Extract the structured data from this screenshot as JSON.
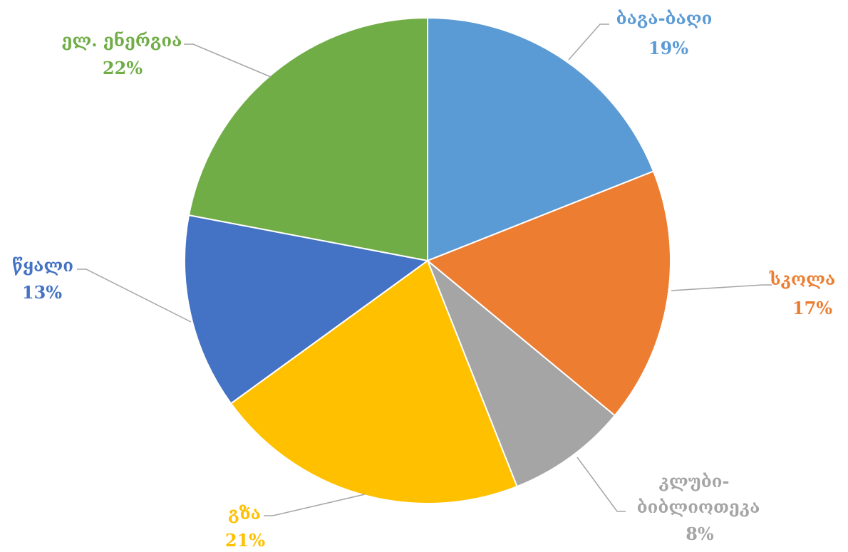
{
  "chart_data": {
    "type": "pie",
    "title": "",
    "slices": [
      {
        "label": "ბაგა-ბაღი",
        "value": 19,
        "pct_label": "19%",
        "color": "#5B9BD5"
      },
      {
        "label": "სკოლა",
        "value": 17,
        "pct_label": "17%",
        "color": "#ED7D31"
      },
      {
        "label": "კლუბი-ბიბლიოთეკა",
        "value": 8,
        "pct_label": "8%",
        "color": "#A5A5A5"
      },
      {
        "label": "გზა",
        "value": 21,
        "pct_label": "21%",
        "color": "#FFC000"
      },
      {
        "label": "წყალი",
        "value": 13,
        "pct_label": "13%",
        "color": "#4472C4"
      },
      {
        "label": "ელ. ენერგია",
        "value": 22,
        "pct_label": "22%",
        "color": "#70AD47"
      }
    ]
  }
}
